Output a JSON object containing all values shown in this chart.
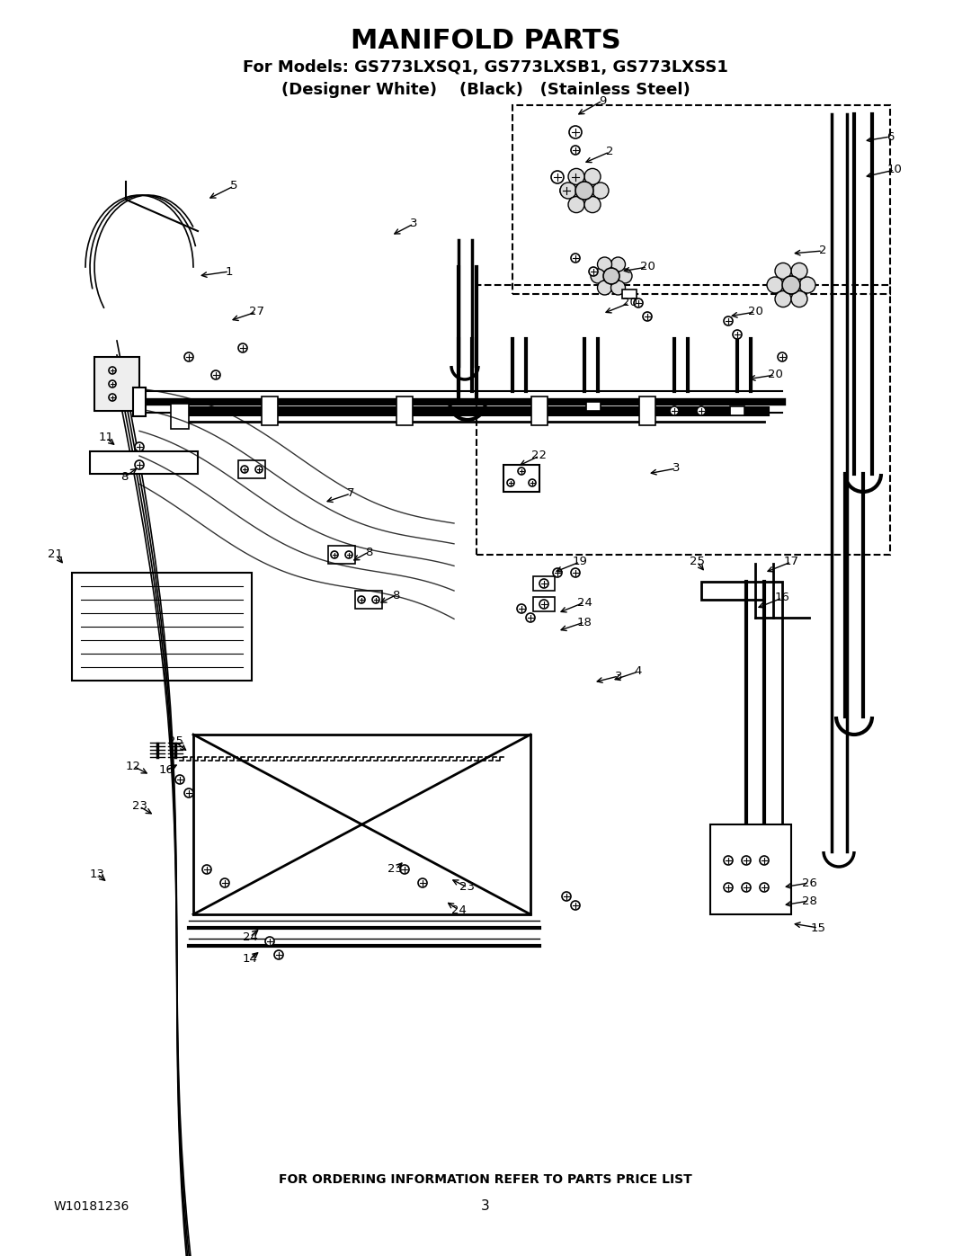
{
  "title": "MANIFOLD PARTS",
  "subtitle1": "For Models: GS773LXSQ1, GS773LXSB1, GS773LXSS1",
  "subtitle2": "(Designer White)    (Black)   (Stainless Steel)",
  "footer_left": "W10181236",
  "footer_center": "3",
  "footer_bottom": "FOR ORDERING INFORMATION REFER TO PARTS PRICE LIST",
  "bg_color": "#ffffff",
  "line_color": "#000000",
  "title_fontsize": 22,
  "subtitle_fontsize": 13,
  "footer_fontsize": 10,
  "diagram_image": true
}
